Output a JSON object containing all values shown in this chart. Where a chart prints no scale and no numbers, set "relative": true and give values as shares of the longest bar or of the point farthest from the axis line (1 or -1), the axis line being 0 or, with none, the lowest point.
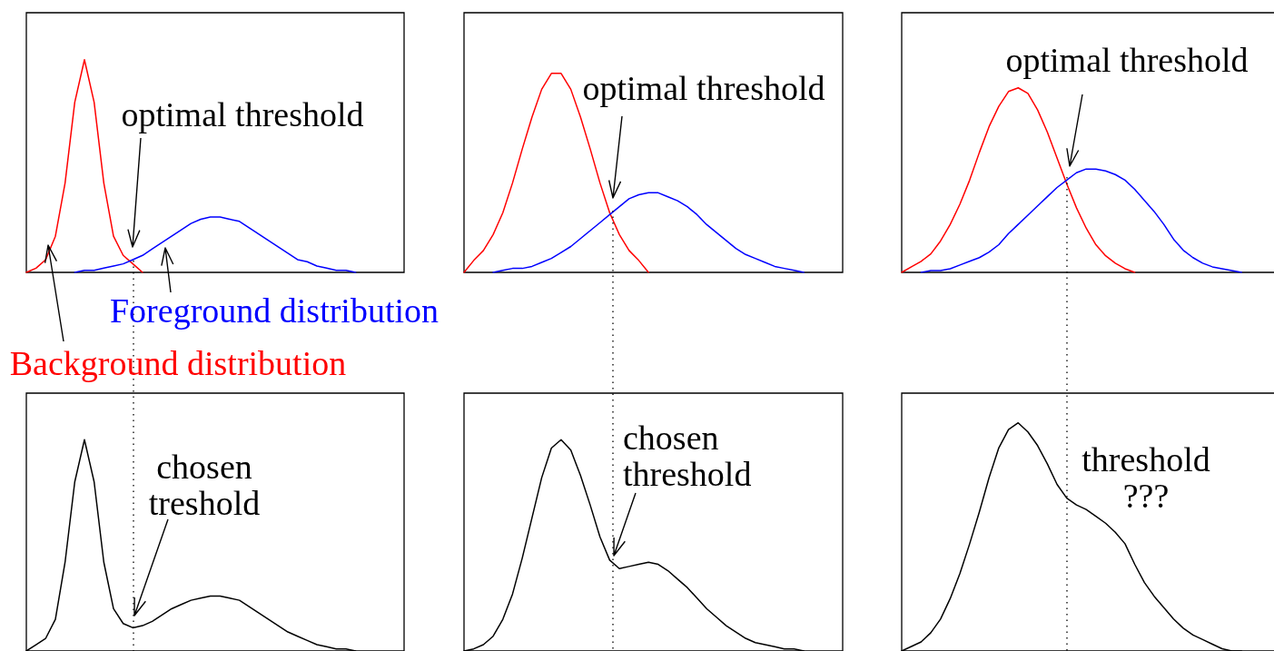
{
  "chart_data": [
    {
      "type": "line",
      "relative": true,
      "marker": "none",
      "annotations": [
        "optimal threshold"
      ],
      "categories": [
        null,
        null,
        null,
        null,
        null,
        null,
        null,
        null,
        null,
        null,
        null,
        null,
        null,
        null,
        null,
        null,
        null,
        null,
        null,
        null,
        null,
        null,
        null,
        null,
        null,
        null,
        null,
        null,
        null,
        null,
        null,
        null,
        null,
        null,
        null,
        null,
        null,
        null,
        null,
        null
      ],
      "series": [
        {
          "name": "Background distribution",
          "color": "#ff0000",
          "values": [
            0,
            0.02,
            0.06,
            0.17,
            0.42,
            0.8,
            1,
            0.8,
            0.42,
            0.17,
            0.08,
            0.04,
            0,
            null,
            null,
            null,
            null,
            null,
            null,
            null,
            null,
            null,
            null,
            null,
            null,
            null,
            null,
            null,
            null,
            null,
            null,
            null,
            null,
            null,
            null,
            null,
            null,
            null,
            null,
            null
          ]
        },
        {
          "name": "Foreground distribution",
          "color": "#0000ff",
          "values": [
            null,
            null,
            null,
            null,
            null,
            0,
            0.01,
            0.01,
            0.02,
            0.03,
            0.04,
            0.06,
            0.08,
            0.11,
            0.14,
            0.17,
            0.2,
            0.23,
            0.25,
            0.26,
            0.26,
            0.25,
            0.24,
            0.21,
            0.18,
            0.15,
            0.12,
            0.09,
            0.06,
            0.05,
            0.03,
            0.02,
            0.01,
            0.01,
            0,
            null,
            null,
            null,
            null,
            null
          ]
        }
      ]
    },
    {
      "type": "line",
      "relative": true,
      "marker": "none",
      "annotations": [
        "optimal threshold"
      ],
      "categories": [
        null,
        null,
        null,
        null,
        null,
        null,
        null,
        null,
        null,
        null,
        null,
        null,
        null,
        null,
        null,
        null,
        null,
        null,
        null,
        null,
        null,
        null,
        null,
        null,
        null,
        null,
        null,
        null,
        null,
        null,
        null,
        null,
        null,
        null,
        null,
        null,
        null,
        null,
        null,
        null
      ],
      "series": [
        {
          "color": "#ff0000",
          "values": [
            0,
            0.06,
            0.11,
            0.19,
            0.3,
            0.45,
            0.62,
            0.78,
            0.92,
            1,
            1,
            0.92,
            0.78,
            0.62,
            0.45,
            0.3,
            0.19,
            0.11,
            0.06,
            0,
            null,
            null,
            null,
            null,
            null,
            null,
            null,
            null,
            null,
            null,
            null,
            null,
            null,
            null,
            null,
            null,
            null,
            null,
            null,
            null
          ]
        },
        {
          "color": "#0000ff",
          "values": [
            null,
            null,
            null,
            0,
            0.01,
            0.02,
            0.02,
            0.03,
            0.05,
            0.07,
            0.1,
            0.13,
            0.17,
            0.21,
            0.25,
            0.29,
            0.33,
            0.37,
            0.39,
            0.4,
            0.4,
            0.38,
            0.36,
            0.33,
            0.29,
            0.24,
            0.2,
            0.16,
            0.12,
            0.09,
            0.07,
            0.05,
            0.03,
            0.02,
            0.01,
            0,
            null,
            null,
            null,
            null
          ]
        }
      ]
    },
    {
      "type": "line",
      "relative": true,
      "marker": "none",
      "annotations": [
        "optimal threshold"
      ],
      "categories": [
        null,
        null,
        null,
        null,
        null,
        null,
        null,
        null,
        null,
        null,
        null,
        null,
        null,
        null,
        null,
        null,
        null,
        null,
        null,
        null,
        null,
        null,
        null,
        null,
        null,
        null,
        null,
        null,
        null,
        null,
        null,
        null,
        null,
        null,
        null,
        null,
        null,
        null,
        null,
        null
      ],
      "series": [
        {
          "color": "#ff0000",
          "values": [
            0,
            0.03,
            0.06,
            0.1,
            0.17,
            0.26,
            0.37,
            0.5,
            0.65,
            0.79,
            0.9,
            0.98,
            1,
            0.97,
            0.88,
            0.76,
            0.62,
            0.48,
            0.35,
            0.24,
            0.15,
            0.09,
            0.05,
            0.02,
            0,
            null,
            null,
            null,
            null,
            null,
            null,
            null,
            null,
            null,
            null,
            null,
            null,
            null,
            null,
            null
          ]
        },
        {
          "color": "#0000ff",
          "values": [
            null,
            null,
            0,
            0.01,
            0.01,
            0.02,
            0.04,
            0.06,
            0.08,
            0.11,
            0.15,
            0.21,
            0.26,
            0.31,
            0.36,
            0.41,
            0.46,
            0.5,
            0.54,
            0.56,
            0.56,
            0.55,
            0.53,
            0.5,
            0.45,
            0.39,
            0.33,
            0.26,
            0.18,
            0.12,
            0.08,
            0.05,
            0.03,
            0.02,
            0.01,
            0,
            null,
            null,
            null,
            null
          ]
        }
      ]
    },
    {
      "type": "line",
      "relative": true,
      "marker": "none",
      "annotations": [
        "chosen\ntreshold"
      ],
      "categories": [
        null,
        null,
        null,
        null,
        null,
        null,
        null,
        null,
        null,
        null,
        null,
        null,
        null,
        null,
        null,
        null,
        null,
        null,
        null,
        null,
        null,
        null,
        null,
        null,
        null,
        null,
        null,
        null,
        null,
        null,
        null,
        null,
        null,
        null,
        null,
        null,
        null,
        null,
        null,
        null
      ],
      "series": [
        {
          "color": "#000000",
          "values": [
            0,
            0.03,
            0.06,
            0.15,
            0.42,
            0.8,
            1,
            0.8,
            0.42,
            0.2,
            0.13,
            0.11,
            0.12,
            0.14,
            0.17,
            0.2,
            0.22,
            0.24,
            0.25,
            0.26,
            0.26,
            0.25,
            0.24,
            0.21,
            0.18,
            0.15,
            0.12,
            0.09,
            0.07,
            0.05,
            0.03,
            0.02,
            0.01,
            0.01,
            0,
            null,
            null,
            null,
            null,
            null
          ]
        }
      ]
    },
    {
      "type": "line",
      "relative": true,
      "marker": "none",
      "annotations": [
        "chosen\nthreshold"
      ],
      "categories": [
        null,
        null,
        null,
        null,
        null,
        null,
        null,
        null,
        null,
        null,
        null,
        null,
        null,
        null,
        null,
        null,
        null,
        null,
        null,
        null,
        null,
        null,
        null,
        null,
        null,
        null,
        null,
        null,
        null,
        null,
        null,
        null,
        null,
        null,
        null,
        null,
        null,
        null,
        null,
        null
      ],
      "series": [
        {
          "color": "#000000",
          "values": [
            0,
            0.01,
            0.03,
            0.07,
            0.15,
            0.27,
            0.44,
            0.63,
            0.82,
            0.96,
            1,
            0.95,
            0.83,
            0.69,
            0.54,
            0.43,
            0.39,
            0.4,
            0.41,
            0.42,
            0.41,
            0.38,
            0.34,
            0.3,
            0.25,
            0.2,
            0.16,
            0.12,
            0.09,
            0.06,
            0.04,
            0.03,
            0.02,
            0.01,
            0.01,
            0,
            null,
            null,
            null,
            null
          ]
        }
      ]
    },
    {
      "type": "line",
      "relative": true,
      "marker": "none",
      "annotations": [
        "threshold\n???"
      ],
      "categories": [
        null,
        null,
        null,
        null,
        null,
        null,
        null,
        null,
        null,
        null,
        null,
        null,
        null,
        null,
        null,
        null,
        null,
        null,
        null,
        null,
        null,
        null,
        null,
        null,
        null,
        null,
        null,
        null,
        null,
        null,
        null,
        null,
        null,
        null,
        null,
        null,
        null,
        null,
        null,
        null
      ],
      "series": [
        {
          "color": "#000000",
          "values": [
            0,
            0.02,
            0.04,
            0.08,
            0.14,
            0.23,
            0.34,
            0.47,
            0.61,
            0.76,
            0.89,
            0.97,
            1,
            0.96,
            0.9,
            0.82,
            0.73,
            0.67,
            0.64,
            0.62,
            0.59,
            0.56,
            0.52,
            0.47,
            0.38,
            0.3,
            0.24,
            0.19,
            0.14,
            0.1,
            0.07,
            0.05,
            0.03,
            0.01,
            0,
            0,
            null,
            null,
            null,
            null
          ]
        }
      ]
    }
  ]
}
